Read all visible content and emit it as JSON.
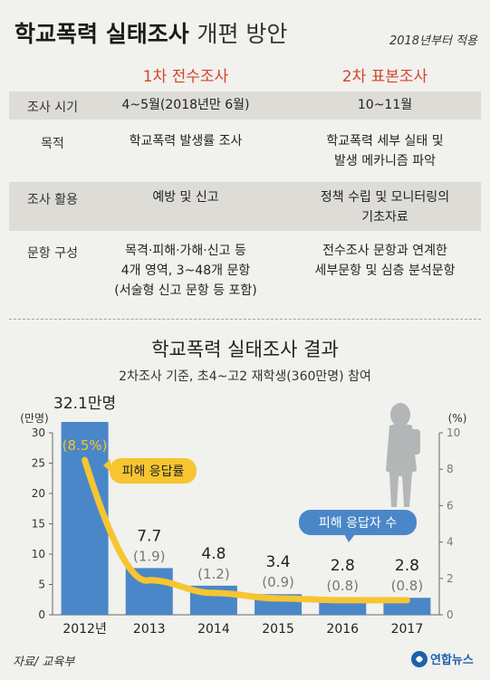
{
  "header": {
    "title_bold": "학교폭력 실태조사",
    "title_light": "개편 방안",
    "apply_note": "2018년부터 적용"
  },
  "table": {
    "columns": [
      "1차 전수조사",
      "2차 표본조사"
    ],
    "rows": [
      {
        "label": "조사 시기",
        "c1": [
          "4~5월(2018년만 6월)"
        ],
        "c2": [
          "10~11월"
        ]
      },
      {
        "label": "목적",
        "c1": [
          "학교폭력 발생률 조사"
        ],
        "c2": [
          "학교폭력 세부 실태 및",
          "발생 메카니즘 파악"
        ]
      },
      {
        "label": "조사 활용",
        "c1": [
          "예방 및 신고"
        ],
        "c2": [
          "정책 수립 및 모니터링의",
          "기초자료"
        ]
      },
      {
        "label": "문항 구성",
        "c1": [
          "목격·피해·가해·신고 등",
          "4개 영역, 3~48개 문항",
          "(서술형 신고 문항 등 포함)"
        ],
        "c2": [
          "전수조사 문항과 연계한",
          "세부문항 및 심층 분석문항"
        ]
      }
    ]
  },
  "chart": {
    "title": "학교폭력 실태조사 결과",
    "subtitle": "2차조사 기준, 초4~고2 재학생(360만명) 참여"
  },
  "chart_data": {
    "type": "bar",
    "categories": [
      "2012년",
      "2013",
      "2014",
      "2015",
      "2016",
      "2017"
    ],
    "series": [
      {
        "name": "피해 응답자 수",
        "type": "bar",
        "axis": "left",
        "unit": "만명",
        "values": [
          32.1,
          7.7,
          4.8,
          3.4,
          2.8,
          2.8
        ],
        "labels": [
          "32.1만명",
          "7.7",
          "4.8",
          "3.4",
          "2.8",
          "2.8"
        ]
      },
      {
        "name": "피해 응답률",
        "type": "line",
        "axis": "right",
        "unit": "%",
        "values": [
          8.5,
          1.9,
          1.2,
          0.9,
          0.8,
          0.8
        ],
        "labels": [
          "(8.5%)",
          "(1.9)",
          "(1.2)",
          "(0.9)",
          "(0.8)",
          "(0.8)"
        ]
      }
    ],
    "ylabel": "(만명)",
    "ylim": [
      0,
      30
    ],
    "yticks": [
      0,
      5,
      10,
      15,
      20,
      25,
      30
    ],
    "y2label": "(%)",
    "y2lim": [
      0,
      10
    ],
    "y2ticks": [
      0,
      2,
      4,
      6,
      8,
      10
    ],
    "colors": {
      "bar": "#4a87c8",
      "line": "#f7c531",
      "label_pct": "#777777",
      "callout": "#f7c531",
      "callout_bars": "#4a87c8"
    }
  },
  "footer": {
    "source": "자료/ 교육부",
    "logo": "연합뉴스"
  }
}
